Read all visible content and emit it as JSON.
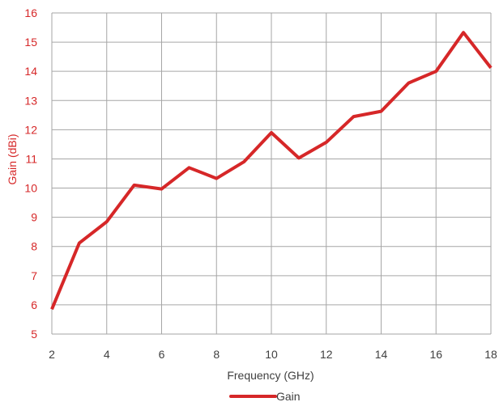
{
  "chart_data": {
    "type": "line",
    "title": "",
    "xlabel": "Frequency (GHz)",
    "ylabel": "Gain (dBi)",
    "xlim": [
      2,
      18
    ],
    "ylim": [
      5,
      16
    ],
    "xticks": [
      2,
      4,
      6,
      8,
      10,
      12,
      14,
      16,
      18
    ],
    "yticks": [
      5,
      6,
      7,
      8,
      9,
      10,
      11,
      12,
      13,
      14,
      15,
      16
    ],
    "grid": true,
    "legend_position": "bottom",
    "series": [
      {
        "name": "Gain",
        "color": "#d62728",
        "x": [
          2,
          3,
          4,
          5,
          6,
          7,
          8,
          9,
          10,
          11,
          12,
          13,
          14,
          15,
          16,
          17,
          18
        ],
        "y": [
          5.85,
          8.12,
          8.85,
          10.1,
          9.97,
          10.7,
          10.33,
          10.9,
          11.9,
          11.03,
          11.57,
          12.45,
          12.63,
          13.6,
          14.0,
          15.33,
          14.12
        ]
      }
    ]
  },
  "colors": {
    "series": "#d62728",
    "ytick_text": "#d62728",
    "xtick_text": "#404040",
    "grid": "#a6a6a6"
  }
}
